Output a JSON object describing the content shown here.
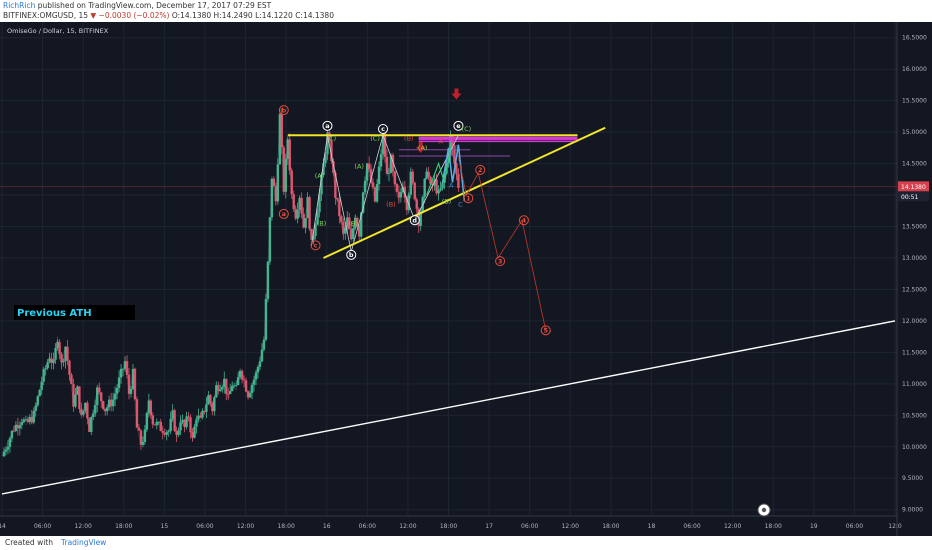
{
  "header": {
    "author": "RichRich",
    "published": "published on TradingView.com, December 17, 2017 07:29 EST",
    "symbol_line": "BITFINEX:OMGUSD, 15",
    "change": "▼ −0.0030 (−0.02%)",
    "ohlc": "O:14.1380 H:14.2490 L:14.1220 C:14.1380"
  },
  "footer": {
    "created_with": "Created with",
    "brand": "TradingView"
  },
  "chart_data": {
    "type": "line",
    "title": "OmiseGo / Dollar, 15, BITFINEX",
    "xlabel": "",
    "ylabel": "",
    "ylim": [
      8.9,
      16.75
    ],
    "y_ticks": [
      "16.5000",
      "16.0000",
      "15.5000",
      "15.0000",
      "14.5000",
      "14.0000",
      "13.5000",
      "13.0000",
      "12.5000",
      "12.0000",
      "11.5000",
      "11.0000",
      "10.5000",
      "10.0000",
      "9.5000",
      "9.0000"
    ],
    "x_ticks": [
      "14",
      "06:00",
      "12:00",
      "18:00",
      "15",
      "06:00",
      "12:00",
      "18:00",
      "16",
      "06:00",
      "12:00",
      "18:00",
      "17",
      "06:00",
      "12:00",
      "18:00",
      "18",
      "06:00",
      "12:00",
      "18:00",
      "19",
      "06:00",
      "12:0"
    ],
    "last_price": "14.1380",
    "countdown": "00:51",
    "price_series": [
      {
        "t": 0,
        "v": 9.85
      },
      {
        "t": 3,
        "v": 10.3
      },
      {
        "t": 5,
        "v": 10.45
      },
      {
        "t": 6,
        "v": 10.35
      },
      {
        "t": 8,
        "v": 10.5
      },
      {
        "t": 10,
        "v": 11.05
      },
      {
        "t": 12,
        "v": 11.45
      },
      {
        "t": 13,
        "v": 11.3
      },
      {
        "t": 14,
        "v": 11.75
      },
      {
        "t": 15,
        "v": 11.3
      },
      {
        "t": 16,
        "v": 11.6
      },
      {
        "t": 17,
        "v": 11.15
      },
      {
        "t": 18,
        "v": 10.7
      },
      {
        "t": 19,
        "v": 10.9
      },
      {
        "t": 20,
        "v": 10.45
      },
      {
        "t": 21,
        "v": 10.7
      },
      {
        "t": 22,
        "v": 10.3
      },
      {
        "t": 24,
        "v": 10.9
      },
      {
        "t": 26,
        "v": 10.6
      },
      {
        "t": 28,
        "v": 10.75
      },
      {
        "t": 30,
        "v": 11.15
      },
      {
        "t": 31,
        "v": 11.35
      },
      {
        "t": 32,
        "v": 10.85
      },
      {
        "t": 33,
        "v": 11.15
      },
      {
        "t": 34,
        "v": 10.3
      },
      {
        "t": 35,
        "v": 10.05
      },
      {
        "t": 36,
        "v": 10.2
      },
      {
        "t": 37,
        "v": 10.75
      },
      {
        "t": 38,
        "v": 10.4
      },
      {
        "t": 40,
        "v": 10.3
      },
      {
        "t": 42,
        "v": 10.25
      },
      {
        "t": 43,
        "v": 10.5
      },
      {
        "t": 44,
        "v": 10.15
      },
      {
        "t": 45,
        "v": 10.45
      },
      {
        "t": 46,
        "v": 10.3
      },
      {
        "t": 47,
        "v": 10.5
      },
      {
        "t": 48,
        "v": 10.1
      },
      {
        "t": 49,
        "v": 10.5
      },
      {
        "t": 50,
        "v": 10.4
      },
      {
        "t": 52,
        "v": 10.8
      },
      {
        "t": 53,
        "v": 10.6
      },
      {
        "t": 54,
        "v": 10.95
      },
      {
        "t": 56,
        "v": 11.05
      },
      {
        "t": 57,
        "v": 10.75
      },
      {
        "t": 58,
        "v": 11.0
      },
      {
        "t": 59,
        "v": 10.9
      },
      {
        "t": 60,
        "v": 11.25
      },
      {
        "t": 62,
        "v": 10.85
      },
      {
        "t": 64,
        "v": 11.15
      },
      {
        "t": 65,
        "v": 11.4
      },
      {
        "t": 66,
        "v": 11.7
      },
      {
        "t": 67,
        "v": 12.9
      },
      {
        "t": 68,
        "v": 14.3
      },
      {
        "t": 69,
        "v": 13.9
      },
      {
        "t": 70,
        "v": 15.25
      },
      {
        "t": 71,
        "v": 14.1
      },
      {
        "t": 72,
        "v": 14.9
      },
      {
        "t": 73,
        "v": 14.0
      },
      {
        "t": 74,
        "v": 13.7
      },
      {
        "t": 75,
        "v": 14.0
      },
      {
        "t": 76,
        "v": 13.5
      },
      {
        "t": 77,
        "v": 13.9
      },
      {
        "t": 78,
        "v": 13.2
      },
      {
        "t": 80,
        "v": 14.0
      },
      {
        "t": 82,
        "v": 14.95
      },
      {
        "t": 83,
        "v": 14.6
      },
      {
        "t": 84,
        "v": 14.0
      },
      {
        "t": 85,
        "v": 13.7
      },
      {
        "t": 86,
        "v": 13.35
      },
      {
        "t": 87,
        "v": 13.6
      },
      {
        "t": 88,
        "v": 13.25
      },
      {
        "t": 89,
        "v": 13.7
      },
      {
        "t": 90,
        "v": 13.4
      },
      {
        "t": 91,
        "v": 14.1
      },
      {
        "t": 92,
        "v": 14.5
      },
      {
        "t": 93,
        "v": 14.2
      },
      {
        "t": 94,
        "v": 13.9
      },
      {
        "t": 95,
        "v": 14.4
      },
      {
        "t": 96,
        "v": 14.95
      },
      {
        "t": 97,
        "v": 14.3
      },
      {
        "t": 98,
        "v": 14.55
      },
      {
        "t": 99,
        "v": 14.1
      },
      {
        "t": 100,
        "v": 13.9
      },
      {
        "t": 101,
        "v": 14.2
      },
      {
        "t": 102,
        "v": 13.85
      },
      {
        "t": 103,
        "v": 14.3
      },
      {
        "t": 104,
        "v": 14.0
      },
      {
        "t": 105,
        "v": 13.6
      },
      {
        "t": 106,
        "v": 13.9
      },
      {
        "t": 107,
        "v": 14.45
      },
      {
        "t": 108,
        "v": 14.1
      },
      {
        "t": 109,
        "v": 14.2
      },
      {
        "t": 110,
        "v": 14.0
      },
      {
        "t": 111,
        "v": 14.15
      },
      {
        "t": 112,
        "v": 14.5
      },
      {
        "t": 113,
        "v": 14.9
      },
      {
        "t": 114,
        "v": 14.5
      },
      {
        "t": 115,
        "v": 14.15
      }
    ],
    "support_line": {
      "start": {
        "t": 0,
        "v": 9.25
      },
      "end": {
        "t": 225,
        "v": 12.0
      }
    },
    "triangle_upper": {
      "start": {
        "t": 72,
        "v": 14.95
      },
      "end": {
        "t": 145,
        "v": 14.95
      }
    },
    "triangle_lower": {
      "start": {
        "t": 81,
        "v": 13.0
      },
      "end": {
        "t": 152,
        "v": 15.07
      }
    },
    "wave_path": [
      {
        "t": 78,
        "v": 13.2
      },
      {
        "t": 82,
        "v": 14.95
      },
      {
        "t": 88,
        "v": 13.1
      },
      {
        "t": 96,
        "v": 14.95
      },
      {
        "t": 104,
        "v": 13.6
      },
      {
        "t": 115,
        "v": 14.95
      }
    ],
    "projection": [
      {
        "t": 115,
        "v": 14.6
      },
      {
        "t": 117,
        "v": 14.0
      },
      {
        "t": 120,
        "v": 14.35
      },
      {
        "t": 125,
        "v": 13.0
      },
      {
        "t": 131,
        "v": 13.6
      },
      {
        "t": 137,
        "v": 11.85
      }
    ],
    "wave_labels": [
      {
        "text": "b",
        "t": 71,
        "v": 15.35,
        "circle": true,
        "color": "#e74c3c"
      },
      {
        "text": "a",
        "t": 71,
        "v": 13.7,
        "circle": true,
        "color": "#e74c3c"
      },
      {
        "text": "c",
        "t": 79,
        "v": 13.2,
        "circle": true,
        "color": "#e74c3c"
      },
      {
        "text": "a",
        "t": 82,
        "v": 15.1,
        "circle": true,
        "color": "#ffffff"
      },
      {
        "text": "b",
        "t": 88,
        "v": 13.05,
        "circle": true,
        "color": "#ffffff"
      },
      {
        "text": "c",
        "t": 96,
        "v": 15.05,
        "circle": true,
        "color": "#ffffff"
      },
      {
        "text": "d",
        "t": 104,
        "v": 13.6,
        "circle": true,
        "color": "#ffffff"
      },
      {
        "text": "e",
        "t": 115,
        "v": 15.1,
        "circle": true,
        "color": "#ffffff"
      },
      {
        "text": "(C)",
        "t": 83,
        "v": 14.9,
        "circle": false,
        "color": "#7ed957"
      },
      {
        "text": "(A)",
        "t": 80,
        "v": 14.3,
        "circle": false,
        "color": "#7ed957"
      },
      {
        "text": "(B)",
        "t": 80.5,
        "v": 13.55,
        "circle": false,
        "color": "#7ed957"
      },
      {
        "text": "(A)",
        "t": 90,
        "v": 14.45,
        "circle": false,
        "color": "#7ed957"
      },
      {
        "text": "(B)",
        "t": 88.5,
        "v": 13.55,
        "circle": false,
        "color": "#7ed957"
      },
      {
        "text": "(C)",
        "t": 94,
        "v": 14.9,
        "circle": false,
        "color": "#7ed957"
      },
      {
        "text": "(B)",
        "t": 102.5,
        "v": 14.9,
        "circle": false,
        "color": "#e74c3c"
      },
      {
        "text": "(A)",
        "t": 106,
        "v": 14.75,
        "circle": false,
        "color": "#7ed957"
      },
      {
        "text": "(B)",
        "t": 112,
        "v": 13.9,
        "circle": false,
        "color": "#7ed957"
      },
      {
        "text": "(C)",
        "t": 117,
        "v": 15.05,
        "circle": false,
        "color": "#7ed957"
      },
      {
        "text": "(B)",
        "t": 98,
        "v": 13.85,
        "circle": false,
        "color": "#e74c3c"
      },
      {
        "text": "A",
        "t": 110.5,
        "v": 14.85,
        "circle": false,
        "color": "#e74c3c"
      },
      {
        "text": "B",
        "t": 114.5,
        "v": 14.75,
        "circle": false,
        "color": "#3498db"
      },
      {
        "text": "A",
        "t": 113.2,
        "v": 14.15,
        "circle": false,
        "color": "#3498db"
      },
      {
        "text": "C",
        "t": 115.5,
        "v": 13.85,
        "circle": false,
        "color": "#3498db"
      },
      {
        "text": "1",
        "t": 117.5,
        "v": 13.95,
        "circle": true,
        "color": "#e74c3c"
      },
      {
        "text": "2",
        "t": 120.5,
        "v": 14.4,
        "circle": true,
        "color": "#e74c3c"
      },
      {
        "text": "3",
        "t": 125.5,
        "v": 12.95,
        "circle": true,
        "color": "#e74c3c"
      },
      {
        "text": "4",
        "t": 131.5,
        "v": 13.6,
        "circle": true,
        "color": "#e74c3c"
      },
      {
        "text": "5",
        "t": 137,
        "v": 11.85,
        "circle": true,
        "color": "#e74c3c"
      }
    ],
    "annotation": "Previous ATH"
  },
  "colors": {
    "background": "#131722",
    "bull": "#3fb58f",
    "bear": "#e0536a",
    "triangle": "#f2e52a",
    "support": "#ffffff",
    "price_badge": "#d6404f",
    "magenta_zone": "#d63ad6",
    "annotation_text": "#29d3f5"
  }
}
